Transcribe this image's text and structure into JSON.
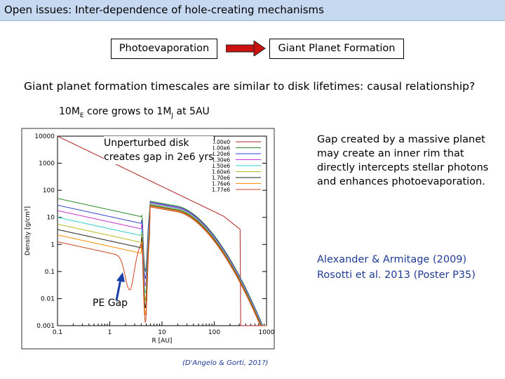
{
  "slide": {
    "title": "Open issues: Inter-dependence of hole-creating mechanisms",
    "left_box": "Photoevaporation",
    "right_box": "Giant Planet Formation",
    "statement": "Giant planet formation timescales are similar to disk lifetimes: causal relationship?",
    "core": {
      "pre": "10M",
      "sub1": "E",
      "mid": " core grows to 1M",
      "sub2": "J",
      "post": " at 5AU"
    },
    "plot_annotation": [
      "Unperturbed disk",
      "creates gap in 2e6 yrs"
    ],
    "pe_gap_label": "PE Gap",
    "citation": "(D'Angelo & Gorti, 201?)",
    "side_text": [
      "Gap created by a massive planet",
      "may create an inner rim that",
      "directly intercepts stellar photons",
      "and enhances photoevaporation."
    ],
    "references": [
      "Alexander & Armitage (2009)",
      "Rosotti et al. 2013 (Poster P35)"
    ]
  },
  "chart_data": {
    "type": "line",
    "xlabel": "R [AU]",
    "ylabel": "Density [g/cm³]",
    "x_scale": "log",
    "y_scale": "log",
    "xlim": [
      0.1,
      1000
    ],
    "ylim": [
      0.001,
      10000
    ],
    "x_ticks": [
      "0.1",
      "1",
      "10",
      "100",
      "1000"
    ],
    "y_ticks": [
      "0.001",
      "0.01",
      "0.1",
      "1",
      "10",
      "100",
      "1000",
      "10000"
    ],
    "legend_position": "top-right",
    "series": [
      {
        "name": "0.00e0",
        "color": "#b02020",
        "low": 0.0,
        "drop": 320
      },
      {
        "name": "1.00e6",
        "color": "#2a8a2a",
        "low": 0.4,
        "drop": 1000
      },
      {
        "name": "1.20e6",
        "color": "#3344cc",
        "low": 0.65,
        "drop": 1000
      },
      {
        "name": "1.30e6",
        "color": "#cc33cc",
        "low": 0.85,
        "drop": 1000
      },
      {
        "name": "1.50e6",
        "color": "#33cccc",
        "low": 1.1,
        "drop": 1000
      },
      {
        "name": "1.60e6",
        "color": "#bbbb22",
        "low": 1.35,
        "drop": 1000
      },
      {
        "name": "1.70e6",
        "color": "#222222",
        "low": 1.55,
        "drop": 1000
      },
      {
        "name": "1.76e6",
        "color": "#ff8c00",
        "low": 1.75,
        "drop": 1000
      },
      {
        "name": "1.77e6",
        "color": "#cc4422",
        "low": 2.0,
        "drop": 1000
      }
    ]
  }
}
